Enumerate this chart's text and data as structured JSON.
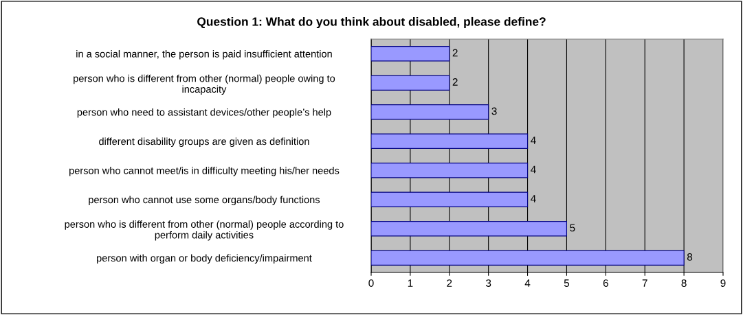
{
  "chart_data": {
    "type": "bar",
    "orientation": "horizontal",
    "title": "Question 1: What do you think about disabled, please define?",
    "categories": [
      "in a social manner, the person is paid insufficient attention",
      "person who is different from other (normal) people owing to\nincapacity",
      "person who need to assistant devices/other people’s help",
      "different disability groups are given as definition",
      "person who cannot meet/is in difficulty meeting his/her needs",
      "person who cannot use some organs/body functions",
      "person who is different from other (normal) people according to\nperform daily activities",
      "person with organ or body deficiency/impairment"
    ],
    "values": [
      2,
      2,
      3,
      4,
      4,
      4,
      5,
      8
    ],
    "color": "#9999ff",
    "xlim": [
      0,
      9
    ],
    "xticks": [
      0,
      1,
      2,
      3,
      4,
      5,
      6,
      7,
      8,
      9
    ],
    "grid": "x",
    "data_labels": true
  }
}
